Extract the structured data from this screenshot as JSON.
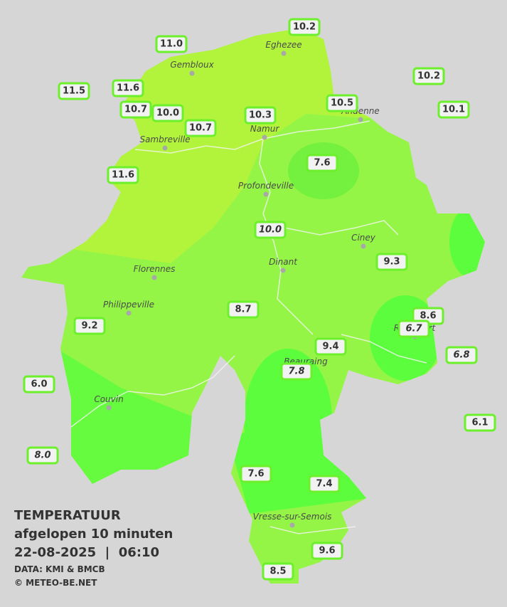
{
  "map": {
    "towns": [
      "Eghezee",
      "Gembloux",
      "Andenne",
      "Namur",
      "Sambreville",
      "Profondeville",
      "Ciney",
      "Dinant",
      "Florennes",
      "Philippeville",
      "Rochefort",
      "Beauraing",
      "Couvin",
      "Vresse-sur-Semois"
    ],
    "readings": [
      {
        "value": "10.2"
      },
      {
        "value": "11.0"
      },
      {
        "value": "10.2"
      },
      {
        "value": "11.5"
      },
      {
        "value": "11.6"
      },
      {
        "value": "10.7"
      },
      {
        "value": "10.0"
      },
      {
        "value": "10.3"
      },
      {
        "value": "10.5"
      },
      {
        "value": "10.1"
      },
      {
        "value": "10.7"
      },
      {
        "value": "7.6"
      },
      {
        "value": "11.6"
      },
      {
        "value": "10.0",
        "italic": true
      },
      {
        "value": "9.3"
      },
      {
        "value": "8.7"
      },
      {
        "value": "8.6"
      },
      {
        "value": "9.2"
      },
      {
        "value": "6.7",
        "italic": true
      },
      {
        "value": "9.4"
      },
      {
        "value": "6.8",
        "italic": true
      },
      {
        "value": "7.8",
        "italic": true
      },
      {
        "value": "6.0"
      },
      {
        "value": "6.1"
      },
      {
        "value": "8.0",
        "italic": true
      },
      {
        "value": "7.6"
      },
      {
        "value": "7.4"
      },
      {
        "value": "9.6"
      },
      {
        "value": "8.5"
      }
    ]
  },
  "legend": {
    "title": "TEMPERATUUR",
    "subtitle": "afgelopen 10 minuten",
    "datetime": "22-08-2025  |  06:10",
    "source": "DATA: KMI & BMCB",
    "credit": "© METEO-BE.NET"
  }
}
